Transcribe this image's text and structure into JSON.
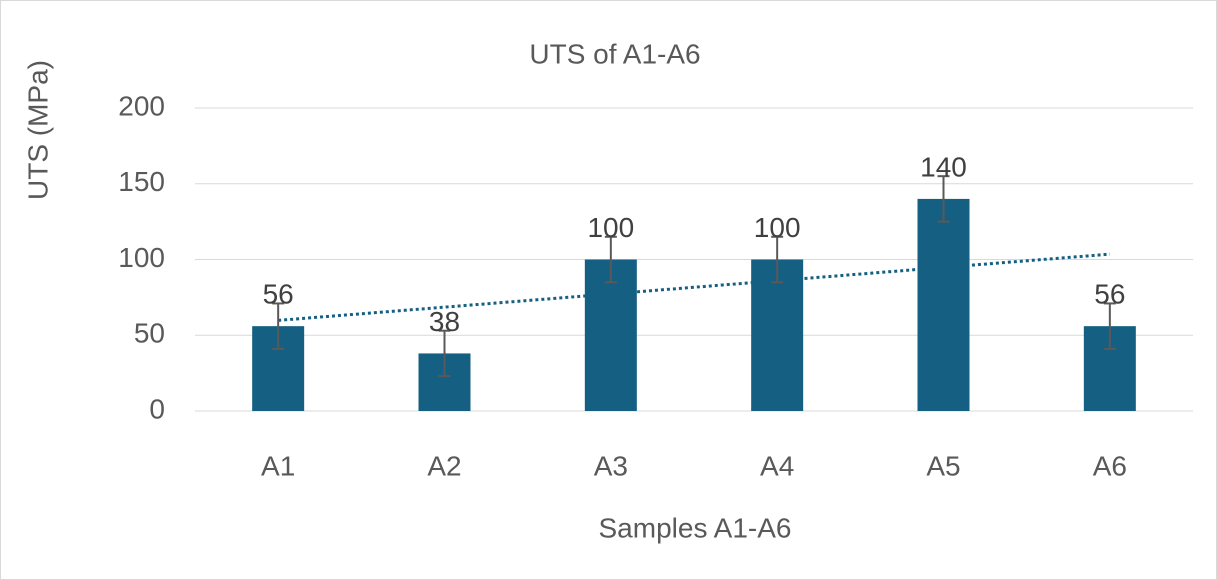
{
  "chart_data": {
    "type": "bar",
    "title": "UTS of A1-A6",
    "x_label": "Samples A1-A6",
    "y_label": "UTS (MPa)",
    "categories": [
      "A1",
      "A2",
      "A3",
      "A4",
      "A5",
      "A6"
    ],
    "values": [
      56,
      38,
      100,
      100,
      140,
      56
    ],
    "errors": [
      15,
      15,
      15,
      15,
      15,
      15
    ],
    "color": "#156082",
    "error_color": "#595959",
    "trendline": "linear",
    "trendline_color": "#156082",
    "ylim": [
      0,
      200
    ],
    "yticks": [
      0,
      50,
      100,
      150,
      200
    ],
    "grid": true
  }
}
